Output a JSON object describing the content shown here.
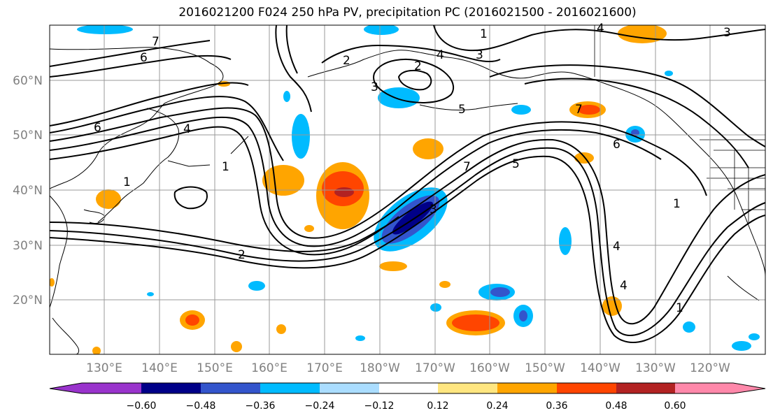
{
  "title": "2016021200 F024 250 hPa PV, precipitation PC (2016021500 - 2016021600)",
  "lat_labels": [
    "20°N",
    "30°N",
    "40°N",
    "50°N",
    "60°N"
  ],
  "lon_labels": [
    "130°E",
    "140°E",
    "150°E",
    "160°E",
    "170°E",
    "180°W",
    "170°W",
    "160°W",
    "150°W",
    "140°W",
    "130°W",
    "120°W"
  ],
  "colorbar": {
    "ticks": [
      "−0.60",
      "−0.48",
      "−0.36",
      "−0.24",
      "−0.12",
      "0.12",
      "0.24",
      "0.36",
      "0.48",
      "0.60"
    ],
    "colors": [
      "#9933cc",
      "#000088",
      "#3355cc",
      "#00bbff",
      "#aaddff",
      "#ffffff",
      "#ffe680",
      "#ffa500",
      "#ff4500",
      "#b22222",
      "#ff88aa"
    ]
  },
  "pv_contour_labels": [
    "1",
    "2",
    "3",
    "4",
    "5",
    "6",
    "7"
  ],
  "colors": {
    "ocean": "#ffffff",
    "contour": "#000000",
    "grid": "#999999",
    "tick_label": "#808080"
  }
}
